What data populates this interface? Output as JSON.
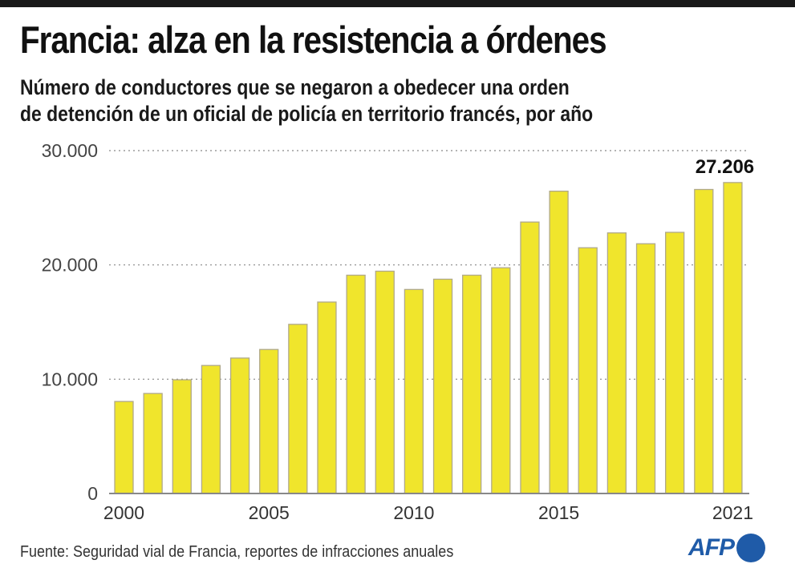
{
  "header": {
    "title": "Francia: alza en la resistencia a órdenes",
    "subtitle_line1": "Número de conductores que se negaron a obedecer una orden",
    "subtitle_line2": "de detención de un oficial de policía en territorio francés, por año"
  },
  "footer": {
    "source": "Fuente: Seguridad vial de Francia, reportes de infracciones anuales",
    "logo_text": "AFP"
  },
  "colors": {
    "bar_fill": "#f0e52c",
    "bar_stroke": "#b0a98a",
    "grid": "#888888",
    "axis": "#888888",
    "logo": "#1f5ba8"
  },
  "chart_data": {
    "type": "bar",
    "title": "Francia: alza en la resistencia a órdenes",
    "xlabel": "",
    "ylabel": "",
    "categories": [
      "2000",
      "2001",
      "2002",
      "2003",
      "2004",
      "2005",
      "2006",
      "2007",
      "2008",
      "2009",
      "2010",
      "2011",
      "2012",
      "2013",
      "2014",
      "2015",
      "2016",
      "2017",
      "2018",
      "2019",
      "2020",
      "2021"
    ],
    "values": [
      8050,
      8750,
      9950,
      11200,
      11850,
      12600,
      14800,
      16750,
      19100,
      19450,
      17850,
      18750,
      19100,
      19750,
      23750,
      26450,
      21500,
      22800,
      21850,
      22850,
      26600,
      27206
    ],
    "ylim": [
      0,
      30000
    ],
    "yticks": [
      0,
      10000,
      20000,
      30000
    ],
    "ytick_labels": [
      "0",
      "10.000",
      "20.000",
      "30.000"
    ],
    "xtick_labels": [
      {
        "category": "2000",
        "label": "2000"
      },
      {
        "category": "2005",
        "label": "2005"
      },
      {
        "category": "2010",
        "label": "2010"
      },
      {
        "category": "2015",
        "label": "2015"
      },
      {
        "category": "2021",
        "label": "2021"
      }
    ],
    "annotations": [
      {
        "category": "2021",
        "text": "27.206"
      }
    ],
    "grid": "horizontal dotted",
    "legend": "none"
  }
}
